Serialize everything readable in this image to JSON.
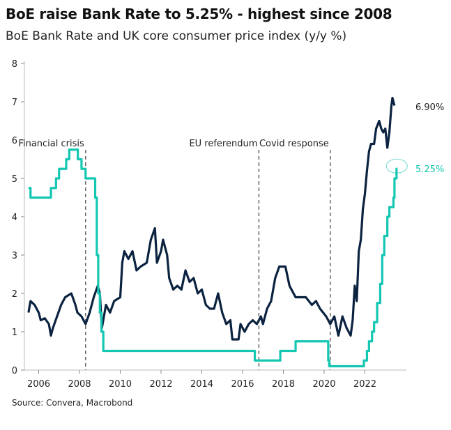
{
  "title": "BoE raise Bank Rate to 5.25% - highest since 2008",
  "subtitle": "BoE Bank Rate and UK core consumer price index (y/y %)",
  "source": "Source: Convera, Macrobond",
  "chart_data": {
    "type": "line",
    "xlim": [
      2005.5,
      2024.1
    ],
    "ylim": [
      0,
      8
    ],
    "yticks": [
      0,
      1,
      2,
      3,
      4,
      5,
      6,
      7,
      8
    ],
    "xticks": [
      2006,
      2008,
      2010,
      2012,
      2014,
      2016,
      2018,
      2020,
      2022
    ],
    "grid": false,
    "colors": {
      "core_cpi": "#0b2340",
      "bank_rate": "#13c7b2",
      "event_line": "#666666"
    },
    "annotations": [
      {
        "label": "Financial crisis",
        "x": 2008.3
      },
      {
        "label": "EU referendum",
        "x": 2016.8
      },
      {
        "label": "Covid response",
        "x": 2020.3
      }
    ],
    "end_labels": {
      "core_cpi": "6.90%",
      "bank_rate": "5.25%"
    },
    "series": [
      {
        "key": "core_cpi",
        "step": false,
        "points": [
          [
            2005.5,
            1.5
          ],
          [
            2005.6,
            1.8
          ],
          [
            2005.8,
            1.7
          ],
          [
            2006.0,
            1.5
          ],
          [
            2006.1,
            1.3
          ],
          [
            2006.3,
            1.35
          ],
          [
            2006.5,
            1.2
          ],
          [
            2006.6,
            0.9
          ],
          [
            2006.7,
            1.1
          ],
          [
            2006.9,
            1.4
          ],
          [
            2007.1,
            1.7
          ],
          [
            2007.3,
            1.9
          ],
          [
            2007.6,
            2.0
          ],
          [
            2007.8,
            1.7
          ],
          [
            2007.9,
            1.5
          ],
          [
            2008.1,
            1.4
          ],
          [
            2008.3,
            1.2
          ],
          [
            2008.5,
            1.5
          ],
          [
            2008.7,
            1.9
          ],
          [
            2008.9,
            2.2
          ],
          [
            2009.0,
            2.0
          ],
          [
            2009.1,
            1.1
          ],
          [
            2009.3,
            1.7
          ],
          [
            2009.5,
            1.5
          ],
          [
            2009.7,
            1.8
          ],
          [
            2010.0,
            1.9
          ],
          [
            2010.1,
            2.8
          ],
          [
            2010.2,
            3.1
          ],
          [
            2010.4,
            2.9
          ],
          [
            2010.6,
            3.1
          ],
          [
            2010.8,
            2.6
          ],
          [
            2011.0,
            2.7
          ],
          [
            2011.3,
            2.8
          ],
          [
            2011.5,
            3.4
          ],
          [
            2011.7,
            3.7
          ],
          [
            2011.8,
            2.8
          ],
          [
            2012.0,
            3.1
          ],
          [
            2012.1,
            3.4
          ],
          [
            2012.3,
            3.0
          ],
          [
            2012.4,
            2.4
          ],
          [
            2012.6,
            2.1
          ],
          [
            2012.8,
            2.2
          ],
          [
            2013.0,
            2.1
          ],
          [
            2013.2,
            2.6
          ],
          [
            2013.4,
            2.3
          ],
          [
            2013.6,
            2.4
          ],
          [
            2013.8,
            2.0
          ],
          [
            2014.0,
            2.1
          ],
          [
            2014.2,
            1.7
          ],
          [
            2014.4,
            1.6
          ],
          [
            2014.6,
            1.6
          ],
          [
            2014.8,
            2.0
          ],
          [
            2015.0,
            1.5
          ],
          [
            2015.2,
            1.2
          ],
          [
            2015.4,
            1.3
          ],
          [
            2015.5,
            0.8
          ],
          [
            2015.8,
            0.8
          ],
          [
            2015.9,
            1.2
          ],
          [
            2016.1,
            1.0
          ],
          [
            2016.3,
            1.2
          ],
          [
            2016.5,
            1.3
          ],
          [
            2016.7,
            1.2
          ],
          [
            2016.9,
            1.4
          ],
          [
            2017.0,
            1.2
          ],
          [
            2017.2,
            1.6
          ],
          [
            2017.4,
            1.8
          ],
          [
            2017.6,
            2.4
          ],
          [
            2017.8,
            2.7
          ],
          [
            2018.1,
            2.7
          ],
          [
            2018.3,
            2.2
          ],
          [
            2018.6,
            1.9
          ],
          [
            2018.8,
            1.9
          ],
          [
            2019.1,
            1.9
          ],
          [
            2019.4,
            1.7
          ],
          [
            2019.6,
            1.8
          ],
          [
            2019.8,
            1.6
          ],
          [
            2020.1,
            1.4
          ],
          [
            2020.3,
            1.2
          ],
          [
            2020.5,
            1.4
          ],
          [
            2020.7,
            0.9
          ],
          [
            2020.9,
            1.4
          ],
          [
            2021.1,
            1.1
          ],
          [
            2021.3,
            0.9
          ],
          [
            2021.4,
            1.3
          ],
          [
            2021.5,
            2.2
          ],
          [
            2021.6,
            1.8
          ],
          [
            2021.7,
            3.1
          ],
          [
            2021.8,
            3.4
          ],
          [
            2021.9,
            4.2
          ],
          [
            2022.0,
            4.6
          ],
          [
            2022.1,
            5.2
          ],
          [
            2022.2,
            5.7
          ],
          [
            2022.3,
            5.9
          ],
          [
            2022.45,
            5.9
          ],
          [
            2022.55,
            6.3
          ],
          [
            2022.7,
            6.5
          ],
          [
            2022.8,
            6.3
          ],
          [
            2022.9,
            6.2
          ],
          [
            2023.0,
            6.3
          ],
          [
            2023.1,
            5.8
          ],
          [
            2023.2,
            6.2
          ],
          [
            2023.3,
            6.9
          ],
          [
            2023.35,
            7.1
          ],
          [
            2023.45,
            6.9
          ]
        ]
      },
      {
        "key": "bank_rate",
        "step": true,
        "points": [
          [
            2005.5,
            4.75
          ],
          [
            2005.6,
            4.5
          ],
          [
            2006.6,
            4.75
          ],
          [
            2006.85,
            5.0
          ],
          [
            2007.0,
            5.25
          ],
          [
            2007.35,
            5.5
          ],
          [
            2007.5,
            5.75
          ],
          [
            2007.92,
            5.5
          ],
          [
            2008.1,
            5.25
          ],
          [
            2008.3,
            5.0
          ],
          [
            2008.77,
            4.5
          ],
          [
            2008.85,
            3.0
          ],
          [
            2008.92,
            2.0
          ],
          [
            2009.0,
            1.5
          ],
          [
            2009.08,
            1.0
          ],
          [
            2009.17,
            0.5
          ],
          [
            2016.6,
            0.25
          ],
          [
            2017.85,
            0.5
          ],
          [
            2018.6,
            0.75
          ],
          [
            2020.2,
            0.25
          ],
          [
            2020.25,
            0.1
          ],
          [
            2021.95,
            0.25
          ],
          [
            2022.1,
            0.5
          ],
          [
            2022.2,
            0.75
          ],
          [
            2022.35,
            1.0
          ],
          [
            2022.45,
            1.25
          ],
          [
            2022.6,
            1.75
          ],
          [
            2022.75,
            2.25
          ],
          [
            2022.85,
            3.0
          ],
          [
            2022.95,
            3.5
          ],
          [
            2023.1,
            4.0
          ],
          [
            2023.2,
            4.25
          ],
          [
            2023.4,
            4.5
          ],
          [
            2023.45,
            5.0
          ],
          [
            2023.55,
            5.25
          ],
          [
            2023.6,
            5.25
          ]
        ]
      }
    ]
  }
}
